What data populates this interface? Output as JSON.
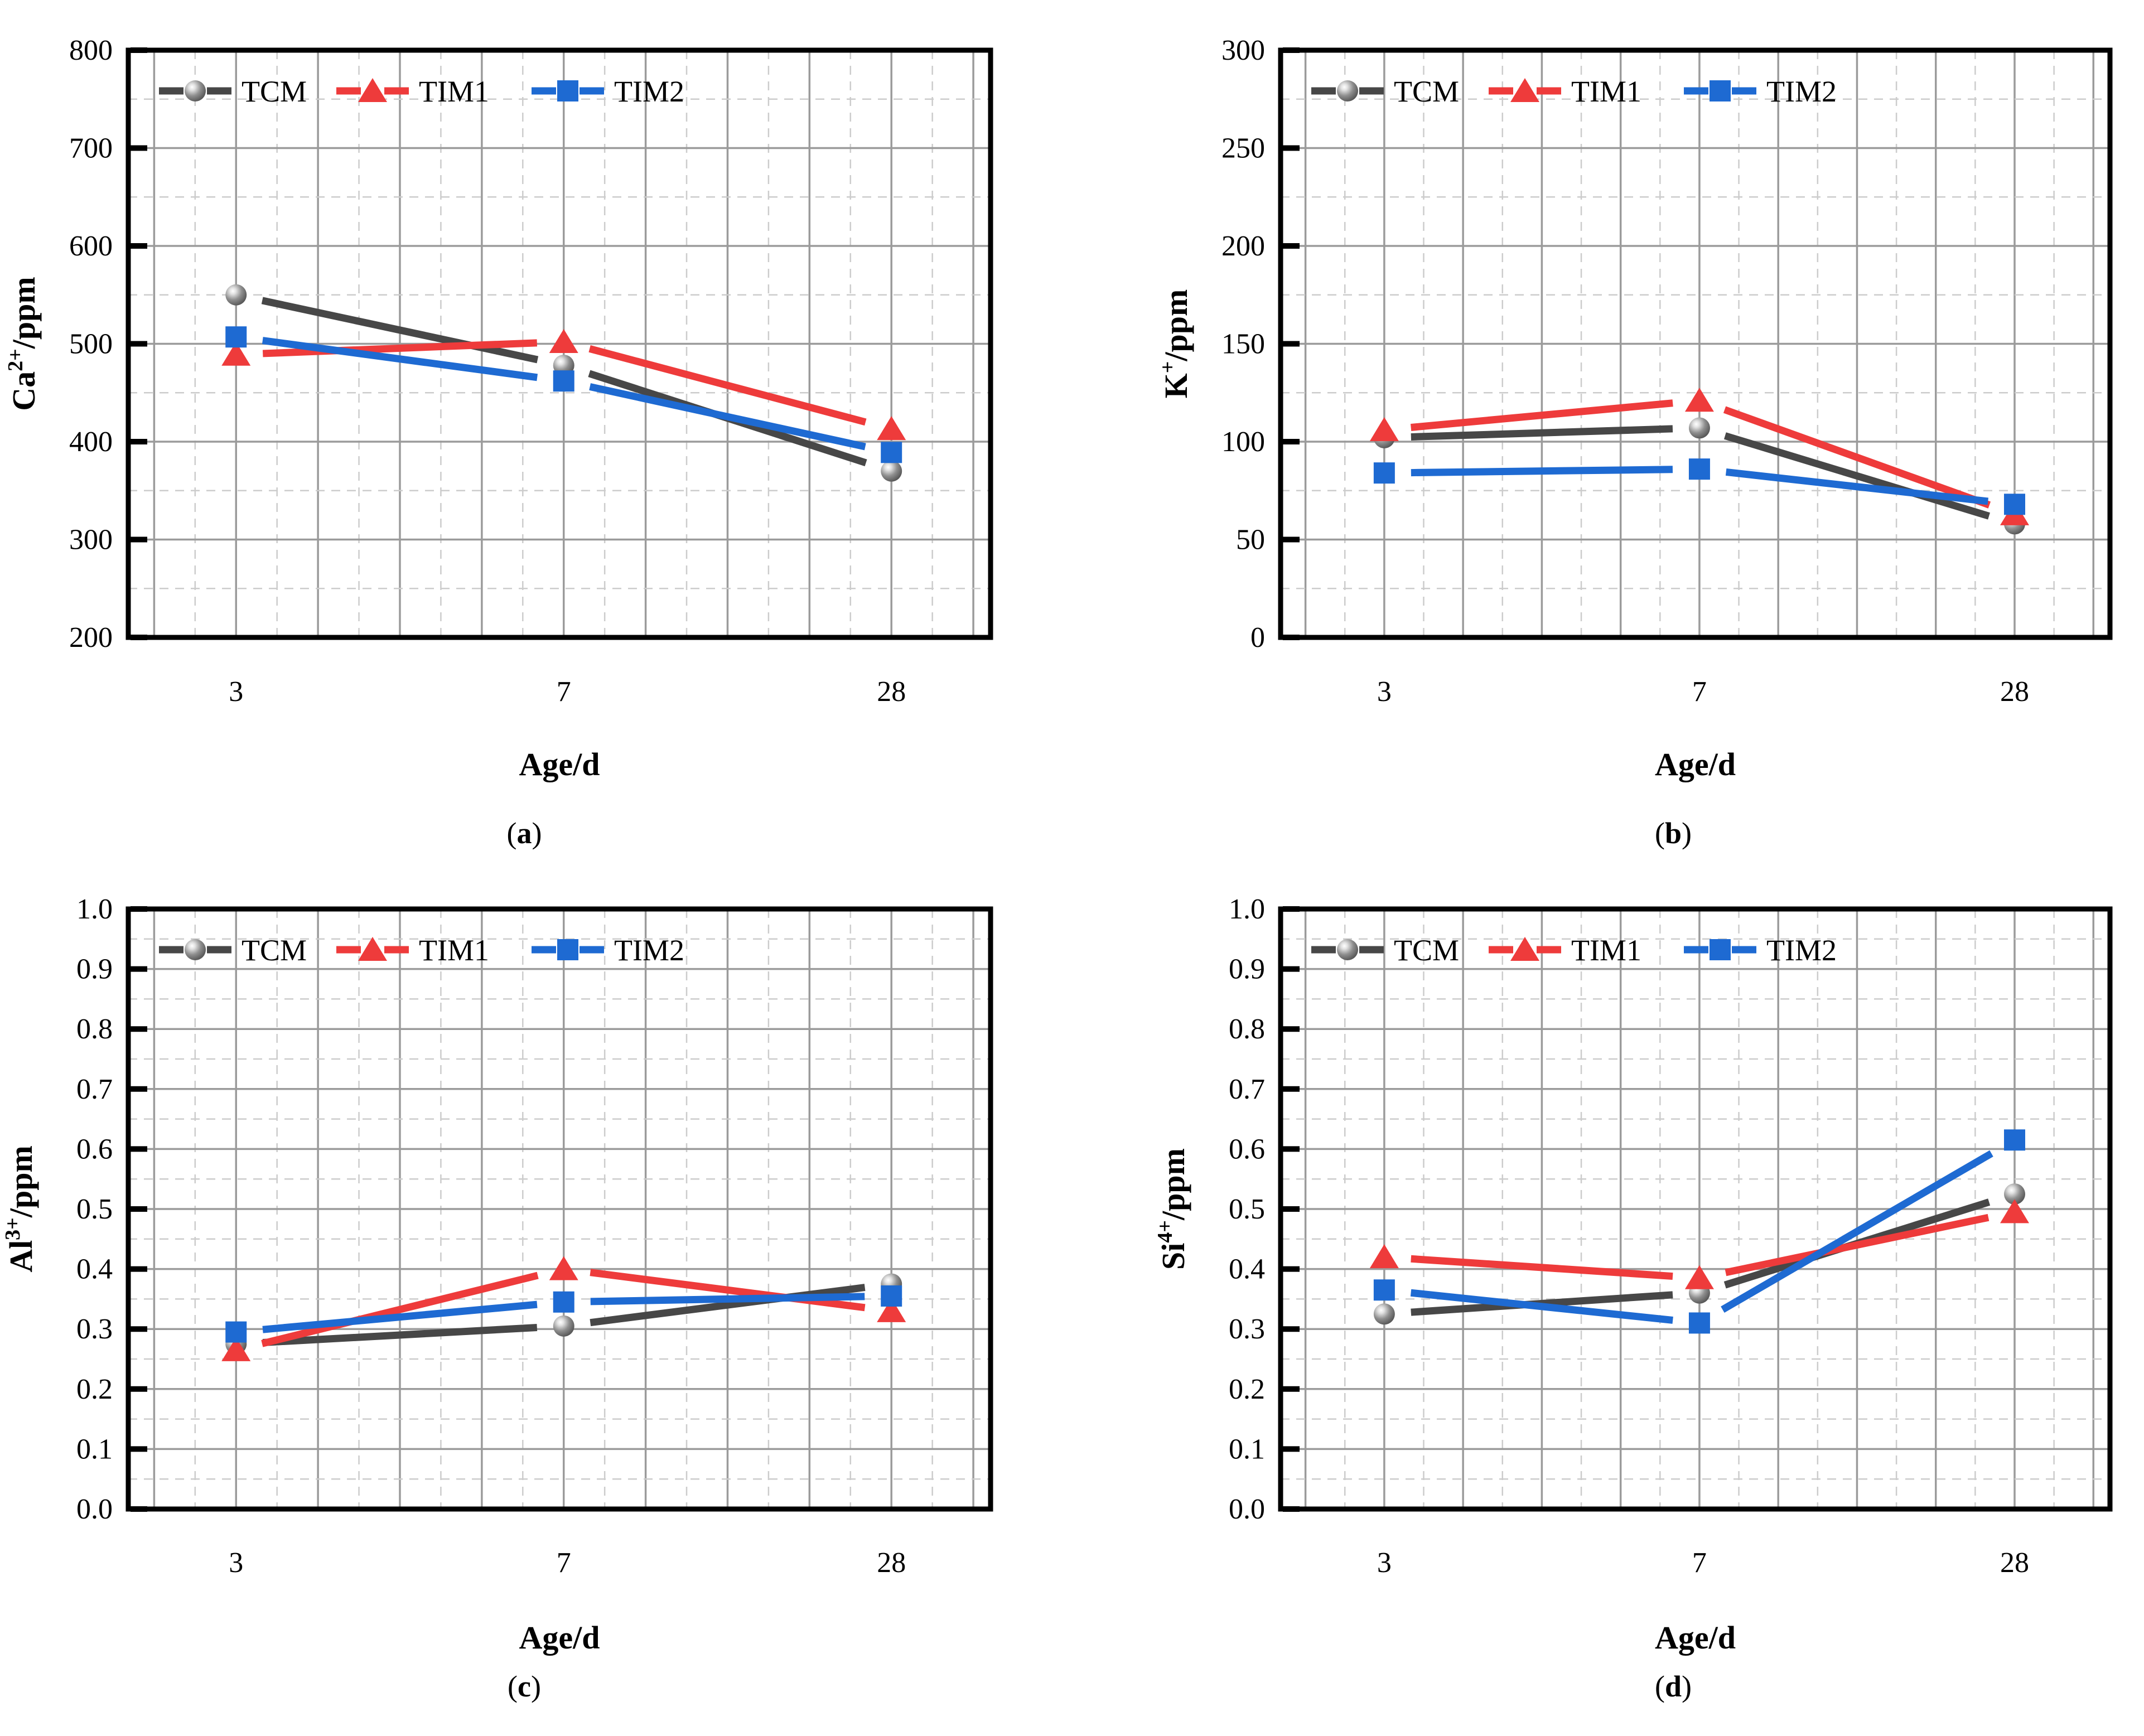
{
  "figure": {
    "description": "Ion concentration versus curing age for three mortar mixes",
    "x_label": "Age/d",
    "x_categories": [
      "3",
      "7",
      "28"
    ],
    "legend_labels": [
      "TCM",
      "TIM1",
      "TIM2"
    ],
    "colors": {
      "TCM_line": "#474747",
      "TIM1": "#ee3b3b",
      "TIM2": "#1e6ad2",
      "sphere_body": "#8f8f8f",
      "sphere_dark": "#4f4f4f",
      "major_grid": "#9b9b9b",
      "minor_grid": "#cccccc",
      "frame": "#000000"
    }
  },
  "chart_data": [
    {
      "type": "line",
      "panel": "a",
      "caption_letter": "a",
      "ylabel_base": "Ca",
      "ylabel_sup": "2+",
      "ylabel_unit": "/ppm",
      "xlabel": "Age/d",
      "categories": [
        "3",
        "7",
        "28"
      ],
      "ylim": [
        200,
        800
      ],
      "ytick_step": 100,
      "ydecimals": 0,
      "grid": "major-solid minor-dashed",
      "legend_position": "top-inside",
      "series": [
        {
          "name": "TCM",
          "marker": "sphere",
          "values": [
            550,
            478,
            370
          ]
        },
        {
          "name": "TIM1",
          "marker": "triangle",
          "values": [
            489,
            502,
            413
          ]
        },
        {
          "name": "TIM2",
          "marker": "square",
          "values": [
            507,
            462,
            389
          ]
        }
      ]
    },
    {
      "type": "line",
      "panel": "b",
      "caption_letter": "b",
      "ylabel_base": "K",
      "ylabel_sup": "+",
      "ylabel_unit": "/ppm",
      "xlabel": "Age/d",
      "categories": [
        "3",
        "7",
        "28"
      ],
      "ylim": [
        0,
        300
      ],
      "ytick_step": 50,
      "ydecimals": 0,
      "grid": "major-solid minor-dashed",
      "legend_position": "top-inside",
      "series": [
        {
          "name": "TCM",
          "marker": "sphere",
          "values": [
            102,
            107,
            58
          ]
        },
        {
          "name": "TIM1",
          "marker": "triangle",
          "values": [
            106,
            121,
            63
          ]
        },
        {
          "name": "TIM2",
          "marker": "square",
          "values": [
            84,
            86,
            68
          ]
        }
      ]
    },
    {
      "type": "line",
      "panel": "c",
      "caption_letter": "c",
      "ylabel_base": "Al",
      "ylabel_sup": "3+",
      "ylabel_unit": "/ppm",
      "xlabel": "Age/d",
      "categories": [
        "3",
        "7",
        "28"
      ],
      "ylim": [
        0,
        1
      ],
      "ytick_step": 0.1,
      "ydecimals": 1,
      "grid": "major-solid minor-dashed",
      "legend_position": "top-inside",
      "series": [
        {
          "name": "TCM",
          "marker": "sphere",
          "values": [
            0.275,
            0.305,
            0.375
          ]
        },
        {
          "name": "TIM1",
          "marker": "triangle",
          "values": [
            0.265,
            0.4,
            0.33
          ]
        },
        {
          "name": "TIM2",
          "marker": "square",
          "values": [
            0.295,
            0.345,
            0.355
          ]
        }
      ]
    },
    {
      "type": "line",
      "panel": "d",
      "caption_letter": "d",
      "ylabel_base": "Si",
      "ylabel_sup": "4+",
      "ylabel_unit": "/ppm",
      "xlabel": "Age/d",
      "categories": [
        "3",
        "7",
        "28"
      ],
      "ylim": [
        0,
        1
      ],
      "ytick_step": 0.1,
      "ydecimals": 1,
      "grid": "major-solid minor-dashed",
      "legend_position": "top-inside",
      "series": [
        {
          "name": "TCM",
          "marker": "sphere",
          "values": [
            0.325,
            0.36,
            0.525
          ]
        },
        {
          "name": "TIM1",
          "marker": "triangle",
          "values": [
            0.42,
            0.385,
            0.495
          ]
        },
        {
          "name": "TIM2",
          "marker": "square",
          "values": [
            0.365,
            0.31,
            0.615
          ]
        }
      ]
    }
  ]
}
